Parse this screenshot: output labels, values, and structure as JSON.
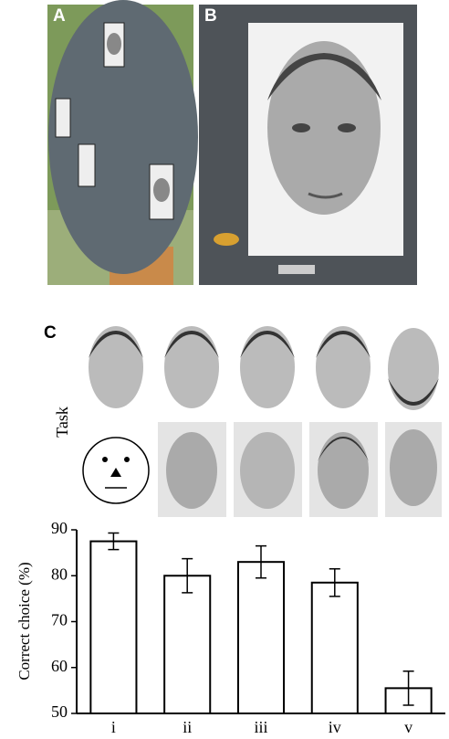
{
  "panels": [
    "A",
    "B",
    "C"
  ],
  "task_label": "Task",
  "chart_data": {
    "type": "bar",
    "ylabel": "Correct choice (%)",
    "categories": [
      "i",
      "ii",
      "iii",
      "iv",
      "v"
    ],
    "values": [
      87.5,
      80,
      83,
      78.5,
      55.5
    ],
    "errors": [
      1.8,
      3.7,
      3.5,
      3,
      3.7
    ],
    "color": "#ffffff",
    "ylim": [
      50,
      90
    ],
    "yticks": [
      50,
      60,
      70,
      80,
      90
    ]
  }
}
